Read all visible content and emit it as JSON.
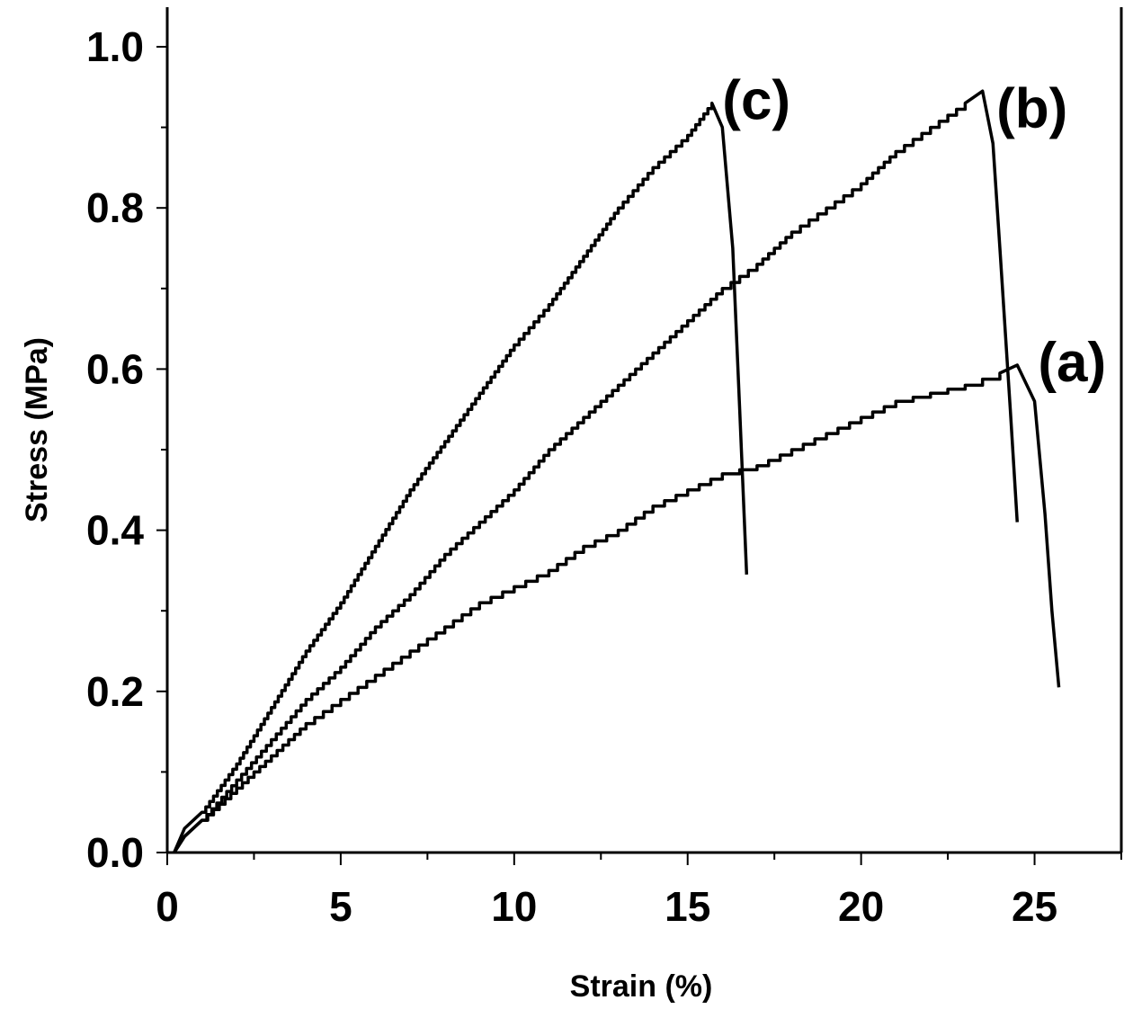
{
  "chart_data": {
    "type": "line",
    "xlabel": "Strain (%)",
    "ylabel": "Stress (MPa)",
    "xlim": [
      0,
      27.5
    ],
    "ylim": [
      0,
      1.05
    ],
    "x_ticks": [
      0,
      5,
      10,
      15,
      20,
      25
    ],
    "x_tick_labels": [
      "0",
      "5",
      "10",
      "15",
      "20",
      "25"
    ],
    "y_ticks": [
      0.0,
      0.2,
      0.4,
      0.6,
      0.8,
      1.0
    ],
    "y_tick_labels": [
      "0.0",
      "0.2",
      "0.4",
      "0.6",
      "0.8",
      "1.0"
    ],
    "grid": false,
    "legend": "none",
    "series": [
      {
        "name": "(a)",
        "x": [
          0.2,
          0.5,
          1.0,
          2.0,
          3.0,
          4.0,
          5.0,
          6.0,
          7.0,
          8.0,
          9.0,
          10.0,
          11.0,
          12.0,
          13.0,
          14.0,
          15.0,
          16.0,
          17.0,
          18.0,
          19.0,
          20.0,
          21.0,
          22.0,
          23.0,
          24.0,
          24.5,
          25.0,
          25.3,
          25.5,
          25.7
        ],
        "y": [
          0.0,
          0.02,
          0.04,
          0.08,
          0.12,
          0.16,
          0.19,
          0.22,
          0.25,
          0.28,
          0.31,
          0.33,
          0.35,
          0.38,
          0.4,
          0.43,
          0.45,
          0.47,
          0.48,
          0.5,
          0.52,
          0.54,
          0.56,
          0.57,
          0.58,
          0.595,
          0.605,
          0.56,
          0.42,
          0.3,
          0.205
        ]
      },
      {
        "name": "(b)",
        "x": [
          0.2,
          0.5,
          1.0,
          2.0,
          3.0,
          4.0,
          5.0,
          6.0,
          7.0,
          8.0,
          9.0,
          10.0,
          11.0,
          12.0,
          13.0,
          14.0,
          15.0,
          16.0,
          17.0,
          18.0,
          19.0,
          20.0,
          21.0,
          22.0,
          23.0,
          23.5,
          23.8,
          24.0,
          24.3,
          24.5
        ],
        "y": [
          0.0,
          0.02,
          0.04,
          0.09,
          0.14,
          0.19,
          0.23,
          0.28,
          0.32,
          0.37,
          0.41,
          0.45,
          0.5,
          0.54,
          0.58,
          0.62,
          0.66,
          0.7,
          0.73,
          0.77,
          0.8,
          0.83,
          0.87,
          0.9,
          0.93,
          0.945,
          0.88,
          0.75,
          0.55,
          0.41
        ]
      },
      {
        "name": "(c)",
        "x": [
          0.2,
          0.5,
          1.0,
          2.0,
          3.0,
          4.0,
          5.0,
          6.0,
          7.0,
          8.0,
          9.0,
          10.0,
          11.0,
          12.0,
          13.0,
          14.0,
          15.0,
          15.7,
          16.0,
          16.3,
          16.5,
          16.7
        ],
        "y": [
          0.0,
          0.03,
          0.05,
          0.11,
          0.18,
          0.25,
          0.31,
          0.38,
          0.45,
          0.51,
          0.57,
          0.63,
          0.68,
          0.74,
          0.8,
          0.85,
          0.89,
          0.93,
          0.9,
          0.75,
          0.55,
          0.345
        ]
      }
    ]
  }
}
